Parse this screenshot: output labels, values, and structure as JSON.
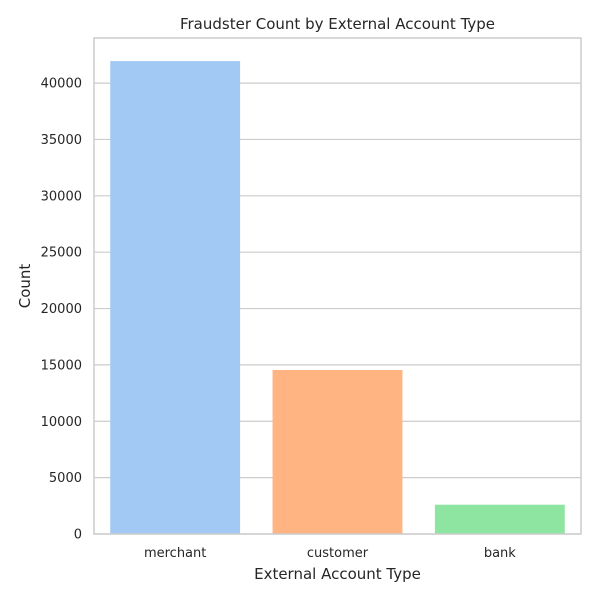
{
  "chart_data": {
    "type": "bar",
    "title": "Fraudster Count by External Account Type",
    "xlabel": "External Account Type",
    "ylabel": "Count",
    "categories": [
      "merchant",
      "customer",
      "bank"
    ],
    "values": [
      41950,
      14550,
      2600
    ],
    "colors": [
      "#a1c9f4",
      "#ffb482",
      "#8de5a1"
    ],
    "ylim": [
      0,
      44000
    ],
    "yticks": [
      0,
      5000,
      10000,
      15000,
      20000,
      25000,
      30000,
      35000,
      40000
    ],
    "ytick_labels": [
      "0",
      "5000",
      "10000",
      "15000",
      "20000",
      "25000",
      "30000",
      "35000",
      "40000"
    ],
    "grid": "horizontal",
    "legend": "none"
  }
}
